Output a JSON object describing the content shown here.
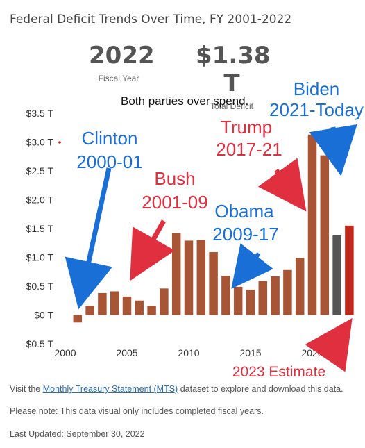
{
  "header": {
    "title": "Federal Deficit Trends Over Time, FY 2001-2022",
    "stat_year_value": "2022",
    "stat_year_label": "Fiscal Year",
    "stat_deficit_value": "$1.38 T",
    "stat_deficit_label": "Total Deficit"
  },
  "annotations": {
    "both_parties": "Both parties over spend.",
    "clinton_1": "Clinton",
    "clinton_2": "2000-01",
    "bush_1": "Bush",
    "bush_2": "2001-09",
    "obama_1": "Obama",
    "obama_2": "2009-17",
    "trump_1": "Trump",
    "trump_2": "2017-21",
    "biden_1": "Biden",
    "biden_2": "2021-Today",
    "estimate": "2023 Estimate"
  },
  "colors": {
    "bar": "#a85535",
    "current_bar": "#555555",
    "estimate_bar": "#c0281c",
    "blue": "#1a6fd6",
    "red": "#e03040",
    "axis_text": "#333333"
  },
  "chart_data": {
    "type": "bar",
    "title": "Federal Deficit Trends Over Time, FY 2001-2022",
    "xlabel": "",
    "ylabel": "",
    "x": [
      2001,
      2002,
      2003,
      2004,
      2005,
      2006,
      2007,
      2008,
      2009,
      2010,
      2011,
      2012,
      2013,
      2014,
      2015,
      2016,
      2017,
      2018,
      2019,
      2020,
      2021,
      2022,
      2023
    ],
    "values": [
      -0.13,
      0.16,
      0.38,
      0.41,
      0.32,
      0.25,
      0.16,
      0.46,
      1.42,
      1.29,
      1.3,
      1.09,
      0.68,
      0.49,
      0.44,
      0.59,
      0.67,
      0.78,
      0.99,
      3.13,
      2.77,
      1.38,
      1.55
    ],
    "bar_kinds": [
      "actual",
      "actual",
      "actual",
      "actual",
      "actual",
      "actual",
      "actual",
      "actual",
      "actual",
      "actual",
      "actual",
      "actual",
      "actual",
      "actual",
      "actual",
      "actual",
      "actual",
      "actual",
      "actual",
      "actual",
      "actual",
      "current",
      "estimate"
    ],
    "ylim": [
      -0.5,
      3.5
    ],
    "xlim": [
      1999.5,
      2023.5
    ],
    "yticks": [
      -0.5,
      0,
      0.5,
      1.0,
      1.5,
      2.0,
      2.5,
      3.0,
      3.5
    ],
    "ytick_labels": [
      "$0.5 T",
      "$0 T",
      "$0.5 T",
      "$1.0 T",
      "$1.5 T",
      "$2.0 T",
      "$2.5 T",
      "$3.0 T",
      "$3.5 T"
    ],
    "xticks": [
      2000,
      2005,
      2010,
      2015,
      2020
    ],
    "xtick_labels": [
      "2000",
      "2005",
      "2010",
      "2015",
      "2020"
    ],
    "grid": false,
    "legend": "none"
  },
  "footer": {
    "visit_prefix": "Visit the ",
    "visit_link": "Monthly Treasury Statement (MTS)",
    "visit_suffix": " dataset to explore and download this data.",
    "note": "Please note: This data visual only includes completed fiscal years.",
    "updated": "Last Updated: September 30, 2022"
  }
}
